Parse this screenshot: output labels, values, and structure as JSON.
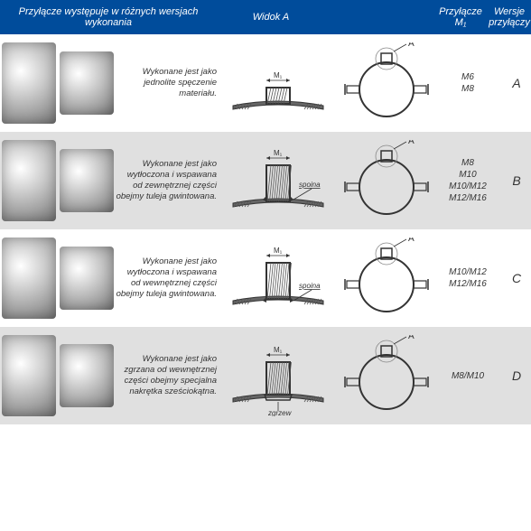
{
  "header": {
    "col1": "Przyłącze występuje w różnych wersjach wykonania",
    "col2": "Widok A",
    "col4_line1": "Przyłącze",
    "col4_line2": "M₁",
    "col5_line1": "Wersje",
    "col5_line2": "przyłączy"
  },
  "rows": [
    {
      "desc": "Wykonane jest jako jednolite spęczenie materiału.",
      "label_m": "M₁",
      "label_a": "A",
      "sizes": "M6\nM8",
      "version": "A",
      "alt": false,
      "cross_type": "short",
      "spoina": null
    },
    {
      "desc": "Wykonane jest jako wytłoczona i wspawana od zewnętrznej części obejmy tuleja gwintowana.",
      "label_m": "M₁",
      "label_a": "A",
      "sizes": "M8\nM10\nM10/M12\nM12/M16",
      "version": "B",
      "alt": true,
      "cross_type": "tall",
      "spoina": "spoina"
    },
    {
      "desc": "Wykonane jest jako wytłoczona i wspawana od wewnętrznej części obejmy tuleja gwintowana.",
      "label_m": "M₁",
      "label_a": "A",
      "sizes": "M10/M12\nM12/M16",
      "version": "C",
      "alt": false,
      "cross_type": "tall_inner",
      "spoina": "spoina"
    },
    {
      "desc": "Wykonane jest jako zgrzana od wewnętrznej części obejmy specjalna nakrętka sześciokątna.",
      "label_m": "M₁",
      "label_a": "A",
      "sizes": "M8/M10",
      "version": "D",
      "alt": true,
      "cross_type": "hex",
      "spoina": "zgrzew"
    }
  ],
  "colors": {
    "header_bg": "#004c9b",
    "alt_bg": "#e0e0e0",
    "line": "#333333",
    "hatch": "#555555"
  }
}
